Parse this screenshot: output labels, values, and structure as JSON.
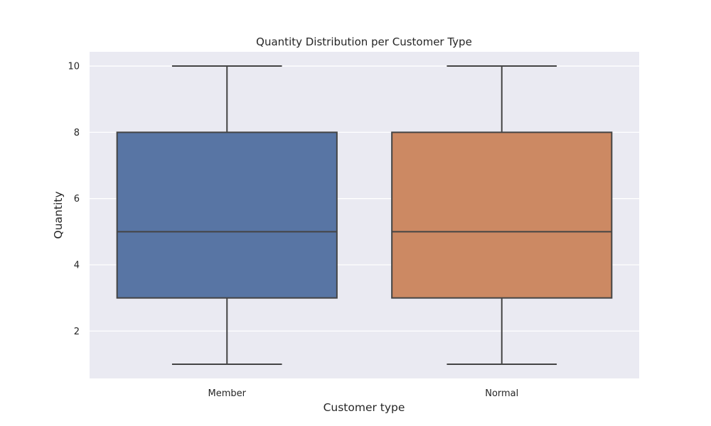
{
  "chart_data": {
    "type": "box",
    "title": "Quantity Distribution per Customer Type",
    "xlabel": "Customer type",
    "ylabel": "Quantity",
    "ylim": [
      0.57,
      10.43
    ],
    "yticks": [
      2,
      4,
      6,
      8,
      10
    ],
    "categories": [
      "Member",
      "Normal"
    ],
    "boxes": [
      {
        "category": "Member",
        "whisker_low": 1,
        "q1": 3,
        "median": 5,
        "q3": 8,
        "whisker_high": 10,
        "color": "#5875a4"
      },
      {
        "category": "Normal",
        "whisker_low": 1,
        "q1": 3,
        "median": 5,
        "q3": 8,
        "whisker_high": 10,
        "color": "#cc8963"
      }
    ],
    "grid": true,
    "background": "#eaeaf2",
    "line_color": "#444444"
  }
}
